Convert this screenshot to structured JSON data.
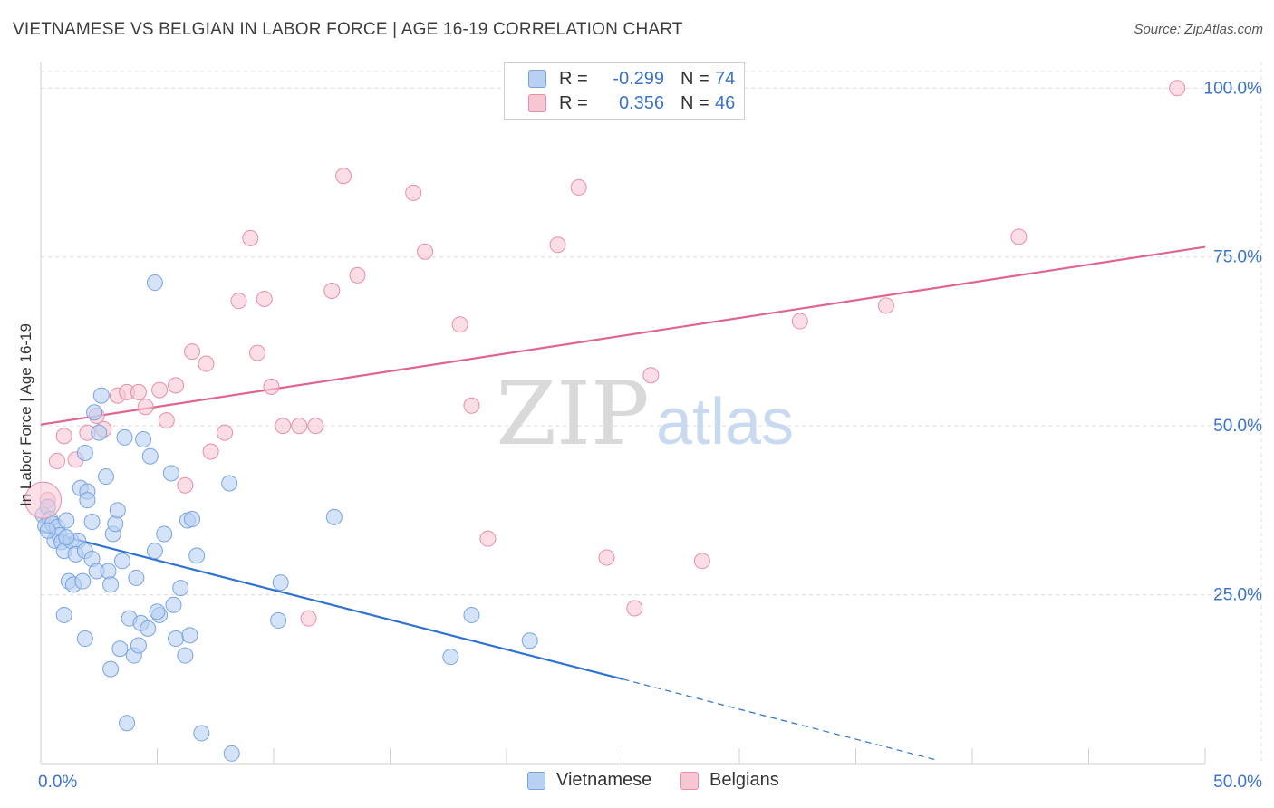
{
  "header": {
    "title": "VIETNAMESE VS BELGIAN IN LABOR FORCE | AGE 16-19 CORRELATION CHART",
    "source": "Source: ZipAtlas.com"
  },
  "legend": {
    "series": [
      {
        "r_label": "R =",
        "r_value": "-0.299",
        "n_label": "N =",
        "n_value": "74"
      },
      {
        "r_label": "R =",
        "r_value": "0.356",
        "n_label": "N =",
        "n_value": "46"
      }
    ],
    "bottom": [
      "Vietnamese",
      "Belgians"
    ]
  },
  "watermark": {
    "zip": "ZIP",
    "atlas": "atlas"
  },
  "colors": {
    "blue_fill": "#b8d1f3",
    "blue_stroke": "#7aa3de",
    "blue_line": "#2f72d0",
    "pink_fill": "#f8c6d3",
    "pink_stroke": "#e58fa9",
    "pink_line": "#e0658e",
    "axis_text": "#3a73c9",
    "grid": "#dcdcdc"
  },
  "chart_data": {
    "type": "scatter",
    "title": "VIETNAMESE VS BELGIAN IN LABOR FORCE | AGE 16-19 CORRELATION CHART",
    "xlabel": "",
    "ylabel": "In Labor Force | Age 16-19",
    "xlim": [
      0,
      50
    ],
    "ylim": [
      0,
      105
    ],
    "x_tick_labels": [
      "0.0%",
      "50.0%"
    ],
    "y_ticks": [
      25,
      50,
      75,
      100
    ],
    "y_tick_labels": [
      "25.0%",
      "50.0%",
      "75.0%",
      "100.0%"
    ],
    "legend_position": "top-center",
    "series": [
      {
        "name": "Vietnamese",
        "r": -0.299,
        "n": 74,
        "trend": {
          "x0": 0,
          "y0": 34.5,
          "x1": 25,
          "y1": 12.5,
          "dashed_to_x": 38.5,
          "dashed_to_y": 0.5
        },
        "points": [
          [
            0.1,
            36.8
          ],
          [
            0.2,
            35.2
          ],
          [
            0.3,
            38.0
          ],
          [
            0.4,
            36.2
          ],
          [
            0.5,
            35.5
          ],
          [
            0.6,
            33.0
          ],
          [
            0.7,
            35.0
          ],
          [
            0.8,
            33.8
          ],
          [
            0.9,
            32.8
          ],
          [
            1.0,
            31.5
          ],
          [
            1.1,
            36.0
          ],
          [
            1.3,
            33.0
          ],
          [
            1.2,
            27.0
          ],
          [
            1.4,
            26.5
          ],
          [
            1.0,
            22.0
          ],
          [
            1.6,
            33.0
          ],
          [
            1.5,
            31.0
          ],
          [
            1.8,
            27.0
          ],
          [
            1.9,
            31.5
          ],
          [
            1.7,
            40.8
          ],
          [
            2.0,
            40.3
          ],
          [
            2.2,
            30.3
          ],
          [
            2.0,
            39.0
          ],
          [
            1.9,
            46.0
          ],
          [
            2.5,
            49.0
          ],
          [
            2.6,
            54.5
          ],
          [
            2.3,
            52.0
          ],
          [
            2.8,
            42.5
          ],
          [
            2.4,
            28.5
          ],
          [
            2.9,
            28.5
          ],
          [
            3.0,
            26.5
          ],
          [
            3.1,
            34.0
          ],
          [
            3.2,
            35.5
          ],
          [
            3.3,
            37.5
          ],
          [
            3.6,
            48.3
          ],
          [
            3.5,
            30.0
          ],
          [
            3.4,
            17.0
          ],
          [
            3.8,
            21.5
          ],
          [
            4.1,
            27.5
          ],
          [
            4.3,
            20.8
          ],
          [
            4.0,
            16.0
          ],
          [
            4.2,
            17.5
          ],
          [
            4.4,
            48.0
          ],
          [
            4.6,
            20.0
          ],
          [
            4.7,
            45.5
          ],
          [
            4.9,
            31.5
          ],
          [
            5.1,
            22.0
          ],
          [
            5.3,
            34.0
          ],
          [
            5.0,
            22.5
          ],
          [
            5.6,
            43.0
          ],
          [
            5.7,
            23.5
          ],
          [
            5.8,
            18.5
          ],
          [
            6.0,
            26.0
          ],
          [
            6.2,
            16.0
          ],
          [
            6.4,
            19.0
          ],
          [
            6.3,
            36.0
          ],
          [
            6.5,
            36.2
          ],
          [
            6.7,
            30.8
          ],
          [
            4.9,
            71.2
          ],
          [
            1.9,
            18.5
          ],
          [
            3.0,
            14.0
          ],
          [
            3.7,
            6.0
          ],
          [
            6.9,
            4.5
          ],
          [
            8.2,
            1.5
          ],
          [
            8.1,
            41.5
          ],
          [
            10.3,
            26.8
          ],
          [
            10.2,
            21.2
          ],
          [
            12.6,
            36.5
          ],
          [
            17.6,
            15.8
          ],
          [
            18.5,
            22.0
          ],
          [
            21.0,
            18.2
          ],
          [
            1.1,
            33.5
          ],
          [
            2.2,
            35.8
          ],
          [
            0.3,
            34.5
          ]
        ]
      },
      {
        "name": "Belgians",
        "r": 0.356,
        "n": 46,
        "trend": {
          "x0": 0,
          "y0": 50.2,
          "x1": 50,
          "y1": 76.5
        },
        "points": [
          [
            0.3,
            39.0
          ],
          [
            0.7,
            44.8
          ],
          [
            1.0,
            48.5
          ],
          [
            1.5,
            45.0
          ],
          [
            2.0,
            49.0
          ],
          [
            2.4,
            51.5
          ],
          [
            2.7,
            49.5
          ],
          [
            3.3,
            54.5
          ],
          [
            3.7,
            55.0
          ],
          [
            4.2,
            55.0
          ],
          [
            4.5,
            52.8
          ],
          [
            5.1,
            55.3
          ],
          [
            5.4,
            50.8
          ],
          [
            5.8,
            56.0
          ],
          [
            6.2,
            41.2
          ],
          [
            6.5,
            61.0
          ],
          [
            7.1,
            59.2
          ],
          [
            7.3,
            46.2
          ],
          [
            7.9,
            49.0
          ],
          [
            8.5,
            68.5
          ],
          [
            9.0,
            77.8
          ],
          [
            9.3,
            60.8
          ],
          [
            9.6,
            68.8
          ],
          [
            9.9,
            55.8
          ],
          [
            10.4,
            50.0
          ],
          [
            11.1,
            50.0
          ],
          [
            11.5,
            21.5
          ],
          [
            11.8,
            50.0
          ],
          [
            12.5,
            70.0
          ],
          [
            13.0,
            87.0
          ],
          [
            13.6,
            72.3
          ],
          [
            16.0,
            84.5
          ],
          [
            16.5,
            75.8
          ],
          [
            18.0,
            65.0
          ],
          [
            18.5,
            53.0
          ],
          [
            19.2,
            33.3
          ],
          [
            22.2,
            76.8
          ],
          [
            23.1,
            85.3
          ],
          [
            24.3,
            30.5
          ],
          [
            25.5,
            23.0
          ],
          [
            26.2,
            57.5
          ],
          [
            28.4,
            30.0
          ],
          [
            32.6,
            65.5
          ],
          [
            36.3,
            67.8
          ],
          [
            42.0,
            78.0
          ],
          [
            48.8,
            100.0
          ]
        ]
      }
    ]
  }
}
